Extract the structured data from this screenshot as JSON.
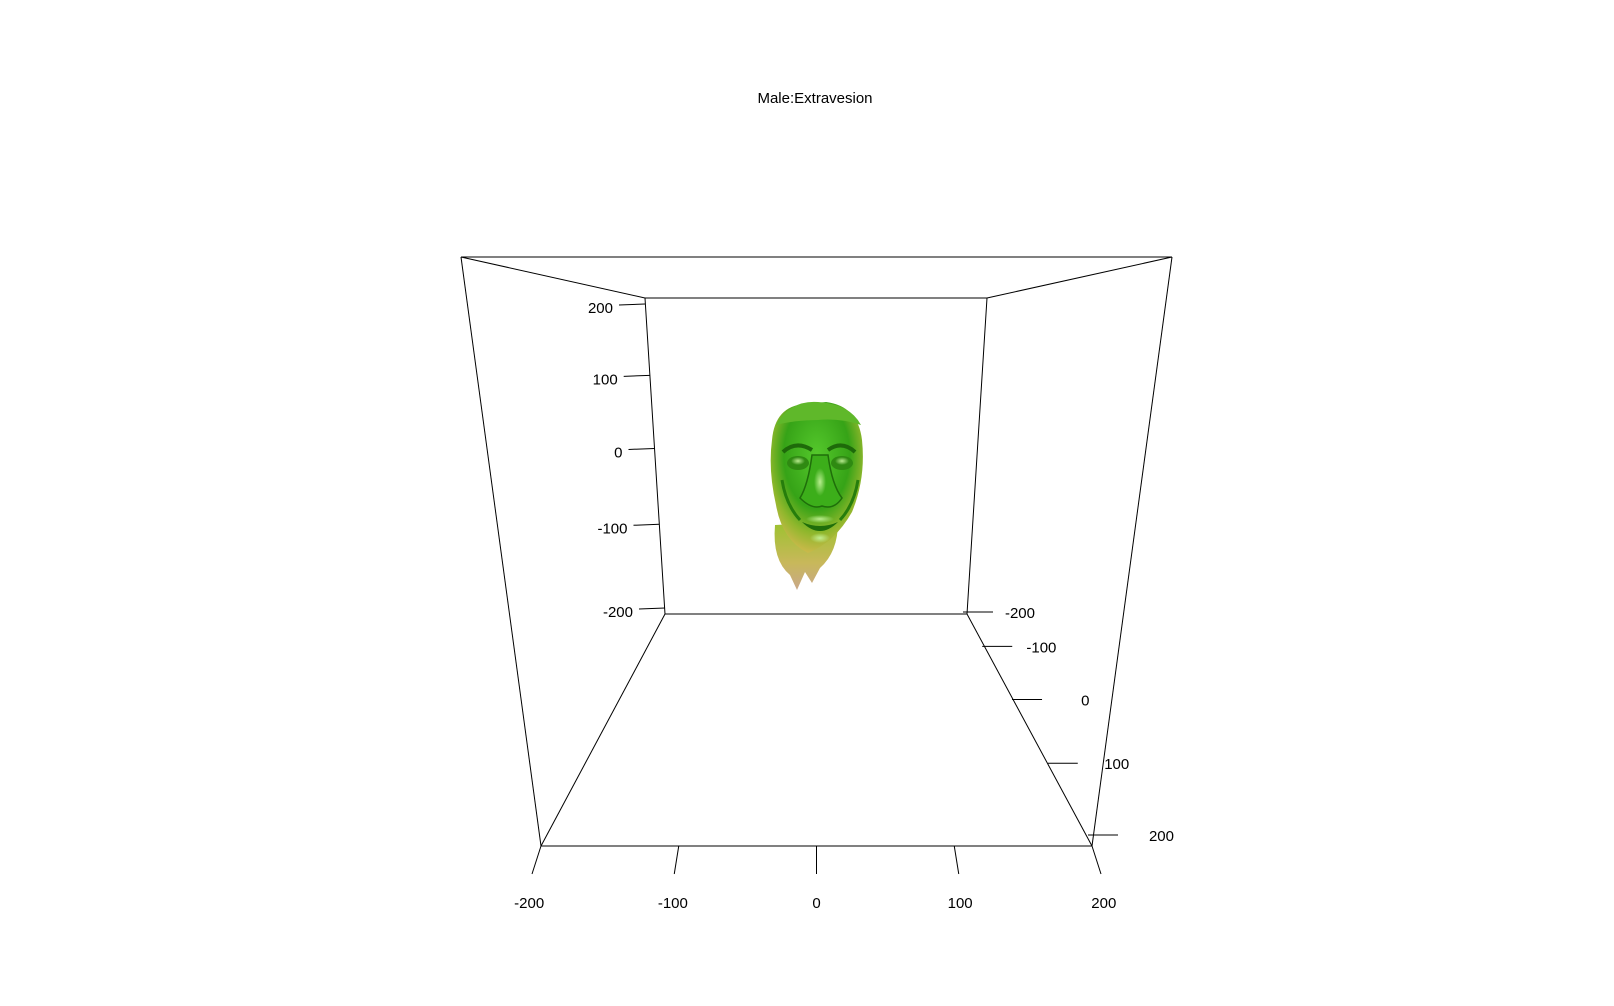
{
  "chart_data": {
    "type": "3d-surface",
    "title": "Male:Extravesion",
    "axes": {
      "x": {
        "ticks": [
          -200,
          -100,
          0,
          100,
          200
        ],
        "tick_labels": [
          "-200",
          "-100",
          "0",
          "100",
          "200"
        ],
        "range": [
          -200,
          200
        ]
      },
      "y": {
        "ticks": [
          -200,
          -100,
          0,
          100,
          200
        ],
        "tick_labels": [
          "-200",
          "-100",
          "0",
          "100",
          "200"
        ],
        "range": [
          -200,
          200
        ]
      },
      "z": {
        "ticks": [
          -200,
          -100,
          0,
          100,
          200
        ],
        "tick_labels": [
          "-200",
          "-100",
          "0",
          "100",
          "200"
        ],
        "range": [
          -200,
          200
        ]
      }
    },
    "surface": {
      "object": "face mesh",
      "colors": {
        "primary": "#3aa81a",
        "highlight": "#8fe06a",
        "shadow": "#1f6e0a",
        "lower_gradient": "#c9c23a",
        "edge_fringe": "#c8a98a"
      }
    },
    "box_color": "#000000",
    "background": "#ffffff"
  }
}
